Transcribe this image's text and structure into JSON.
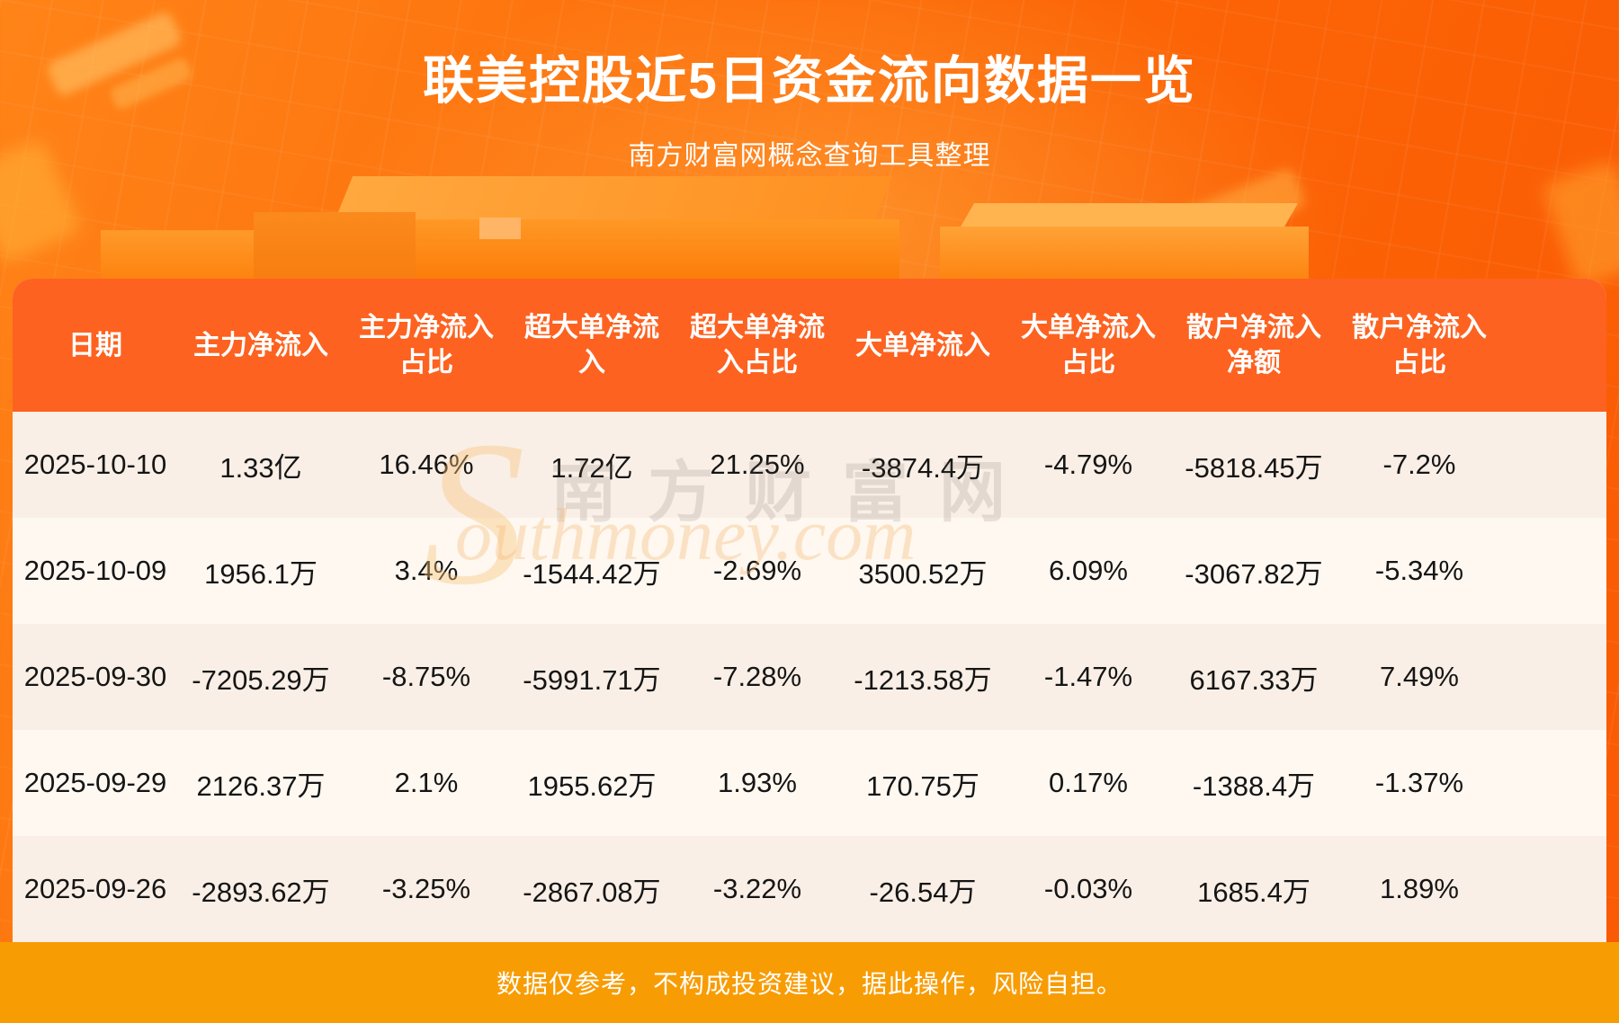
{
  "page": {
    "title": "联美控股近5日资金流向数据一览",
    "subtitle": "南方财富网概念查询工具整理",
    "disclaimer": "数据仅参考，不构成投资建议，据此操作，风险自担。"
  },
  "watermark": {
    "initial": "S",
    "cjk": "南方财富网",
    "latin": "outhmoney.com"
  },
  "colors": {
    "accent_header": "#fd6220",
    "footer_band": "#f89c03",
    "row_odd": "#f9efe6",
    "row_even": "#fef8f1",
    "page_orange": "#fc6406",
    "title_text": "#ffffff",
    "cell_text": "#151515"
  },
  "table": {
    "header_lines": [
      [
        "日期"
      ],
      [
        "主力净流入"
      ],
      [
        "主力净流入",
        "占比"
      ],
      [
        "超大单净流",
        "入"
      ],
      [
        "超大单净流",
        "入占比"
      ],
      [
        "大单净流入"
      ],
      [
        "大单净流入",
        "占比"
      ],
      [
        "散户净流入",
        "净额"
      ],
      [
        "散户净流入",
        "占比"
      ]
    ]
  },
  "chart_data": {
    "type": "table",
    "title": "联美控股近5日资金流向数据一览",
    "subtitle": "南方财富网概念查询工具整理",
    "columns": [
      "日期",
      "主力净流入",
      "主力净流入占比",
      "超大单净流入",
      "超大单净流入占比",
      "大单净流入",
      "大单净流入占比",
      "散户净流入净额",
      "散户净流入占比"
    ],
    "rows": [
      [
        "2025-10-10",
        "1.33亿",
        "16.46%",
        "1.72亿",
        "21.25%",
        "-3874.4万",
        "-4.79%",
        "-5818.45万",
        "-7.2%"
      ],
      [
        "2025-10-09",
        "1956.1万",
        "3.4%",
        "-1544.42万",
        "-2.69%",
        "3500.52万",
        "6.09%",
        "-3067.82万",
        "-5.34%"
      ],
      [
        "2025-09-30",
        "-7205.29万",
        "-8.75%",
        "-5991.71万",
        "-7.28%",
        "-1213.58万",
        "-1.47%",
        "6167.33万",
        "7.49%"
      ],
      [
        "2025-09-29",
        "2126.37万",
        "2.1%",
        "1955.62万",
        "1.93%",
        "170.75万",
        "0.17%",
        "-1388.4万",
        "-1.37%"
      ],
      [
        "2025-09-26",
        "-2893.62万",
        "-3.25%",
        "-2867.08万",
        "-3.22%",
        "-26.54万",
        "-0.03%",
        "1685.4万",
        "1.89%"
      ]
    ],
    "notes": "数据仅参考，不构成投资建议，据此操作，风险自担。"
  }
}
